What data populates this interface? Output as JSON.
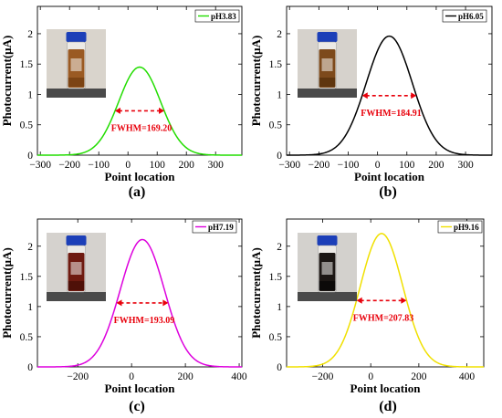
{
  "chart_data": [
    {
      "id": "a",
      "type": "line",
      "panel_label": "(a)",
      "xlabel": "Point location",
      "ylabel": "Photocurrent(μA)",
      "xlim": [
        -310,
        390
      ],
      "ylim": [
        0,
        2.45
      ],
      "xticks": [
        -300,
        -200,
        -100,
        0,
        100,
        200,
        300
      ],
      "yticks": [
        0,
        0.5,
        1,
        1.5,
        2
      ],
      "series": [
        {
          "name": "pH3.83",
          "color": "#22dd00",
          "peak_x": 40,
          "peak_y": 1.45,
          "fwhm": 169.2
        }
      ],
      "annotation": {
        "text": "FWHM=169.20",
        "from": -44.6,
        "to": 124.6,
        "y": 0.73
      },
      "inset": "vial-light-brown"
    },
    {
      "id": "b",
      "type": "line",
      "panel_label": "(b)",
      "xlabel": "Point location",
      "ylabel": "Photocurrent(μA)",
      "xlim": [
        -310,
        390
      ],
      "ylim": [
        0,
        2.45
      ],
      "xticks": [
        -300,
        -200,
        -100,
        0,
        100,
        200,
        300
      ],
      "yticks": [
        0,
        0.5,
        1,
        1.5,
        2
      ],
      "series": [
        {
          "name": "pH6.05",
          "color": "#000000",
          "peak_x": 40,
          "peak_y": 1.96,
          "fwhm": 184.91
        }
      ],
      "annotation": {
        "text": "FWHM=184.91",
        "from": -52.5,
        "to": 132.5,
        "y": 0.98
      },
      "inset": "vial-brown"
    },
    {
      "id": "c",
      "type": "line",
      "panel_label": "(c)",
      "xlabel": "Point location",
      "ylabel": "Photocurrent(μA)",
      "xlim": [
        -350,
        410
      ],
      "ylim": [
        0,
        2.45
      ],
      "xticks": [
        -200,
        0,
        200,
        400
      ],
      "yticks": [
        0,
        0.5,
        1,
        1.5,
        2
      ],
      "series": [
        {
          "name": "pH7.19",
          "color": "#dd00dd",
          "peak_x": 40,
          "peak_y": 2.11,
          "fwhm": 193.09
        }
      ],
      "annotation": {
        "text": "FWHM=193.09",
        "from": -56.5,
        "to": 136.5,
        "y": 1.06
      },
      "inset": "vial-dark-red"
    },
    {
      "id": "d",
      "type": "line",
      "panel_label": "(d)",
      "xlabel": "Point location",
      "ylabel": "Photocurrent(μA)",
      "xlim": [
        -350,
        470
      ],
      "ylim": [
        0,
        2.45
      ],
      "xticks": [
        -200,
        0,
        200,
        400
      ],
      "yticks": [
        0,
        0.5,
        1,
        1.5,
        2
      ],
      "series": [
        {
          "name": "pH9.16",
          "color": "#f0e000",
          "peak_x": 45,
          "peak_y": 2.21,
          "fwhm": 207.83
        }
      ],
      "annotation": {
        "text": "FWHM=207.83",
        "from": -58.9,
        "to": 148.9,
        "y": 1.1
      },
      "inset": "vial-black"
    }
  ]
}
